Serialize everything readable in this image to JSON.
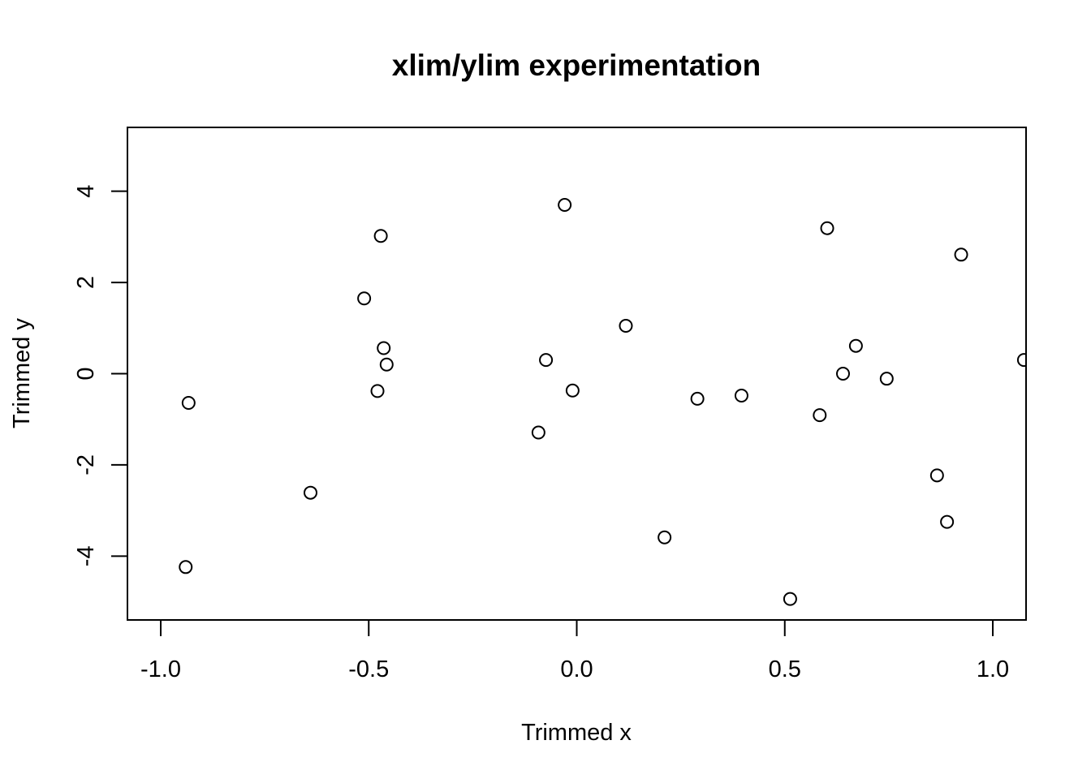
{
  "chart_data": {
    "type": "scatter",
    "title": "xlim/ylim experimentation",
    "xlabel": "Trimmed x",
    "ylabel": "Trimmed y",
    "xlim": [
      -1.08,
      1.08
    ],
    "ylim": [
      -5.4,
      5.4
    ],
    "xticks": [
      -1.0,
      -0.5,
      0.0,
      0.5,
      1.0
    ],
    "xtick_labels": [
      "-1.0",
      "-0.5",
      "0.0",
      "0.5",
      "1.0"
    ],
    "yticks": [
      -4,
      -2,
      0,
      2,
      4
    ],
    "ytick_labels": [
      "-4",
      "-2",
      "0",
      "2",
      "4"
    ],
    "grid": false,
    "marker": "open-circle",
    "points": [
      {
        "x": -0.933,
        "y": -0.64
      },
      {
        "x": -0.94,
        "y": -4.24
      },
      {
        "x": -0.64,
        "y": -2.61
      },
      {
        "x": -0.511,
        "y": 1.65
      },
      {
        "x": -0.471,
        "y": 3.02
      },
      {
        "x": -0.464,
        "y": 0.56
      },
      {
        "x": -0.457,
        "y": 0.2
      },
      {
        "x": -0.479,
        "y": -0.38
      },
      {
        "x": -0.029,
        "y": 3.7
      },
      {
        "x": -0.074,
        "y": 0.3
      },
      {
        "x": -0.01,
        "y": -0.37
      },
      {
        "x": -0.092,
        "y": -1.29
      },
      {
        "x": 0.118,
        "y": 1.05
      },
      {
        "x": 0.211,
        "y": -3.59
      },
      {
        "x": 0.29,
        "y": -0.55
      },
      {
        "x": 0.396,
        "y": -0.48
      },
      {
        "x": 0.513,
        "y": -4.94
      },
      {
        "x": 0.584,
        "y": -0.91
      },
      {
        "x": 0.602,
        "y": 3.19
      },
      {
        "x": 0.64,
        "y": 0.0
      },
      {
        "x": 0.671,
        "y": 0.61
      },
      {
        "x": 0.745,
        "y": -0.11
      },
      {
        "x": 0.866,
        "y": -2.23
      },
      {
        "x": 0.89,
        "y": -3.25
      },
      {
        "x": 0.924,
        "y": 2.61
      },
      {
        "x": 1.075,
        "y": 0.3
      }
    ]
  }
}
